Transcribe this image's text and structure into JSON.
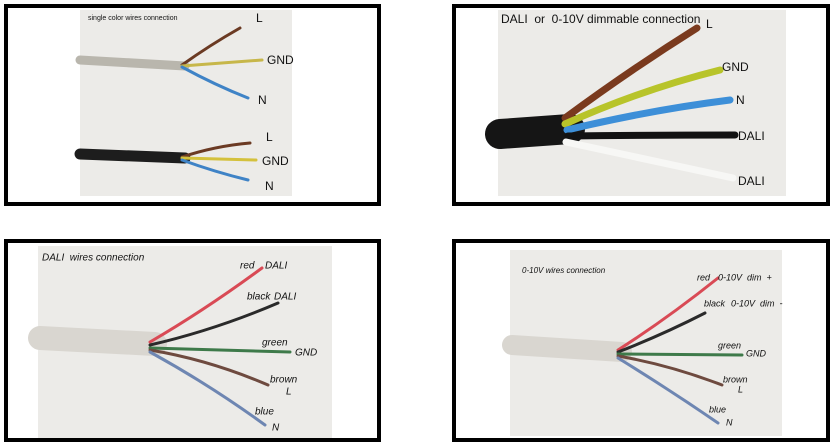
{
  "panels": [
    {
      "title": "single color wires connection",
      "cables": [
        [
          "L",
          "GND",
          "N"
        ],
        [
          "L",
          "GND",
          "N"
        ]
      ]
    },
    {
      "title": "DALI  or  0-10V dimmable connection",
      "wires": [
        "L",
        "GND",
        "N",
        "DALI",
        "DALI"
      ]
    },
    {
      "title": "DALI  wires connection",
      "wires": [
        {
          "color": "red",
          "label": "DALI"
        },
        {
          "color": "black",
          "label": "DALI"
        },
        {
          "color": "green",
          "label": "GND"
        },
        {
          "color": "brown",
          "label": "L"
        },
        {
          "color": "blue",
          "label": "N"
        }
      ]
    },
    {
      "title": "0-10V wires connection",
      "wires": [
        {
          "color": "red",
          "label": "0-10V  dim  +"
        },
        {
          "color": "black",
          "label": "0-10V  dim  -"
        },
        {
          "color": "green",
          "label": "GND"
        },
        {
          "color": "brown",
          "label": "L"
        },
        {
          "color": "blue",
          "label": "N"
        }
      ]
    }
  ]
}
